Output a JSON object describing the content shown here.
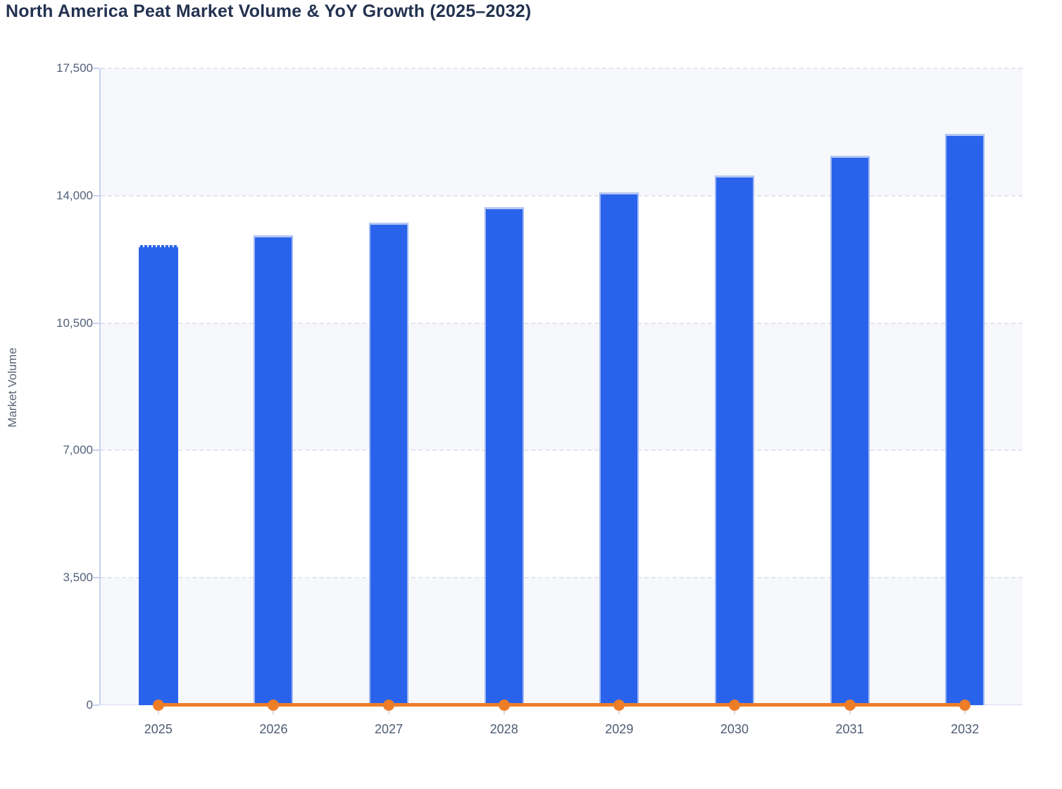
{
  "chart_data": {
    "type": "bar",
    "title": "North America Peat Market Volume & YoY Growth (2025–2032)",
    "ylabel": "Market Volume",
    "xlabel": "",
    "categories": [
      "2025",
      "2026",
      "2027",
      "2028",
      "2029",
      "2030",
      "2031",
      "2032"
    ],
    "series": [
      {
        "name": "Market Volume",
        "type": "bar",
        "color": "#2a63eb",
        "values": [
          12650,
          12920,
          13270,
          13680,
          14100,
          14550,
          15090,
          15700
        ]
      },
      {
        "name": "YoY Growth",
        "type": "line",
        "color": "#ee7d28",
        "values": [
          0,
          2.1,
          2.7,
          3.1,
          3.1,
          3.2,
          3.7,
          4.0
        ]
      }
    ],
    "ylim": [
      0,
      17500
    ],
    "yticks": [
      0,
      3500,
      7000,
      10500,
      14000,
      17500
    ],
    "ytick_labels": [
      "0",
      "3,500",
      "7,000",
      "10,500",
      "14,000",
      "17,500"
    ],
    "grid": "dashed horizontal gridlines, alternating row stripes",
    "legend": "none"
  },
  "colors": {
    "bar_fill": "#2a63eb",
    "bar_cap": "#b5c8f4",
    "line": "#ee7d28",
    "band_light": "#f7f8fc",
    "gridline": "#e3e5ee",
    "axis": "#c9d2ee",
    "title_text": "#233250",
    "tick_text": "#53617a"
  }
}
